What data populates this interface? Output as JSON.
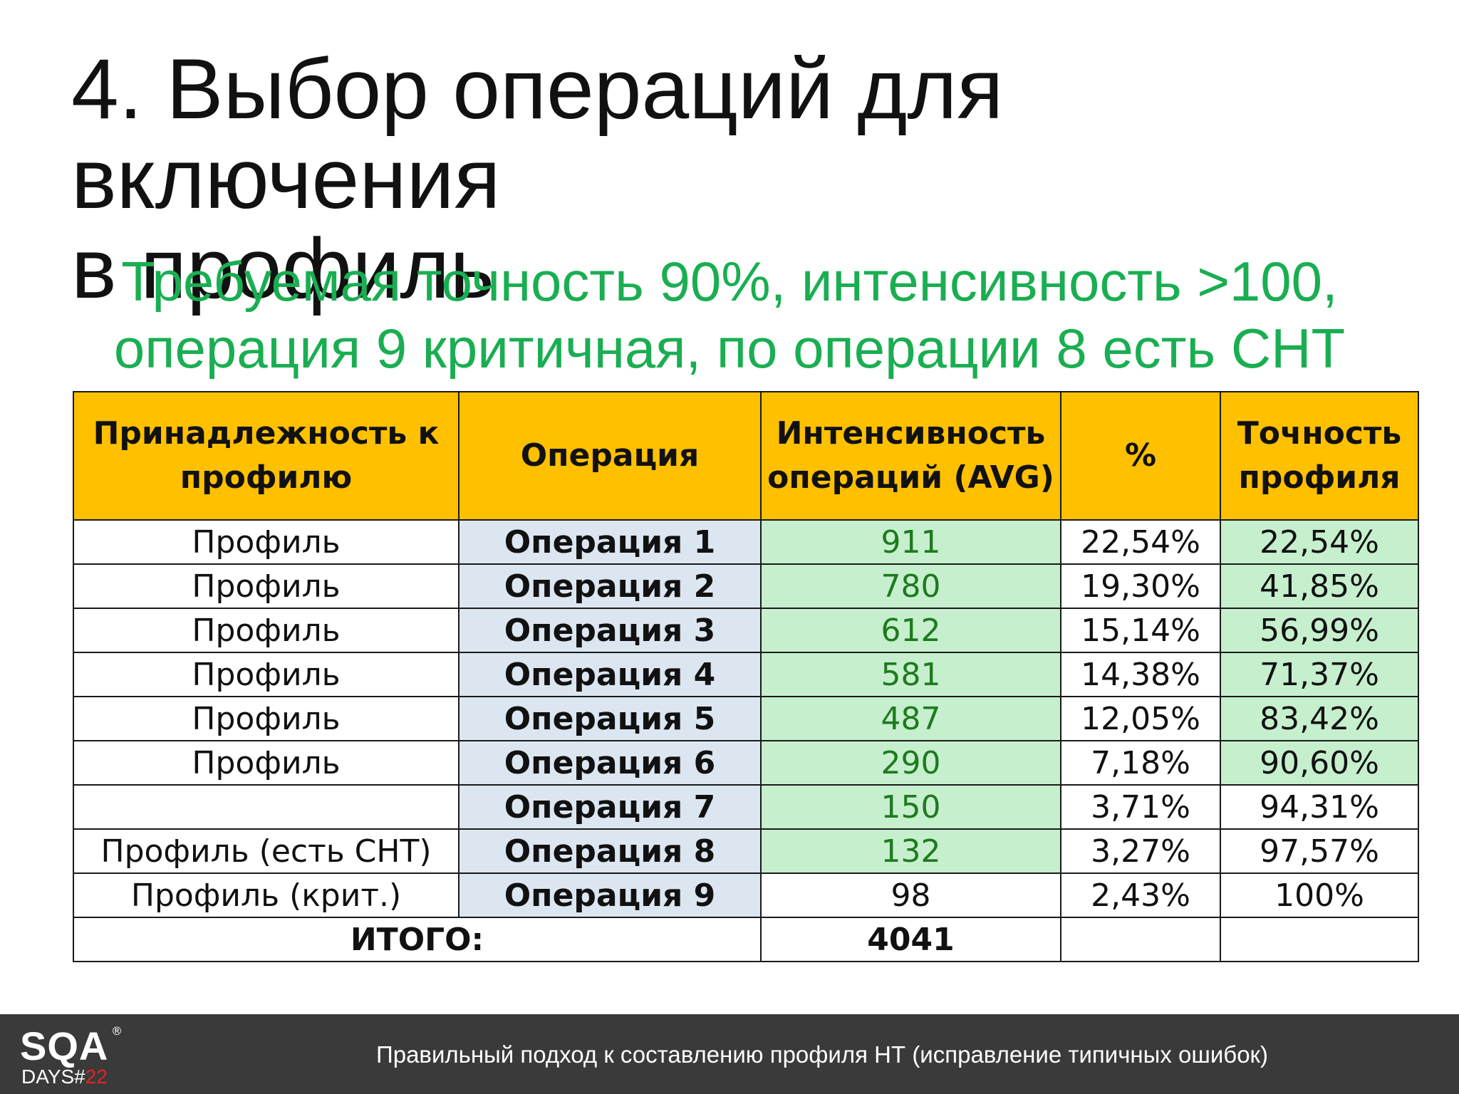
{
  "title": {
    "line1": "4. Выбор операций для включения",
    "line2": "в профиль"
  },
  "subtitle": {
    "line1": "Требуемая точность 90%, интенсивность >100,",
    "line2": "операция 9 критичная, по операции 8 есть СНТ"
  },
  "table": {
    "headers": {
      "profile": "Принадлежность к профилю",
      "operation": "Операция",
      "intensity": "Интенсивность операций (AVG)",
      "percent": "%",
      "accuracy": "Точность профиля"
    },
    "rows": [
      {
        "profile": "Профиль",
        "operation": "Операция 1",
        "intensity": "911",
        "percent": "22,54%",
        "accuracy": "22,54%"
      },
      {
        "profile": "Профиль",
        "operation": "Операция 2",
        "intensity": "780",
        "percent": "19,30%",
        "accuracy": "41,85%"
      },
      {
        "profile": "Профиль",
        "operation": "Операция 3",
        "intensity": "612",
        "percent": "15,14%",
        "accuracy": "56,99%"
      },
      {
        "profile": "Профиль",
        "operation": "Операция 4",
        "intensity": "581",
        "percent": "14,38%",
        "accuracy": "71,37%"
      },
      {
        "profile": "Профиль",
        "operation": "Операция 5",
        "intensity": "487",
        "percent": "12,05%",
        "accuracy": "83,42%"
      },
      {
        "profile": "Профиль",
        "operation": "Операция 6",
        "intensity": "290",
        "percent": "7,18%",
        "accuracy": "90,60%"
      },
      {
        "profile": "",
        "operation": "Операция 7",
        "intensity": "150",
        "percent": "3,71%",
        "accuracy": "94,31%"
      },
      {
        "profile": "Профиль (есть СНТ)",
        "operation": "Операция 8",
        "intensity": "132",
        "percent": "3,27%",
        "accuracy": "97,57%"
      },
      {
        "profile": "Профиль (крит.)",
        "operation": "Операция 9",
        "intensity": "98",
        "percent": "2,43%",
        "accuracy": "100%"
      }
    ],
    "total": {
      "label": "ИТОГО:",
      "intensity": "4041"
    }
  },
  "colors": {
    "header_bg": "#ffc000",
    "operation_bg": "#dce6f1",
    "highlight_bg": "#c6efce",
    "intensity_text": "#1e7a1e",
    "subtitle_text": "#1aae52",
    "footer_bg": "#3a3a3a"
  },
  "footer": {
    "logo_main": "SQA",
    "logo_sub_prefix": "DAYS#",
    "logo_sub_number": "22",
    "logo_reg": "®",
    "text": "Правильный подход к составлению профиля НТ (исправление типичных ошибок)"
  }
}
